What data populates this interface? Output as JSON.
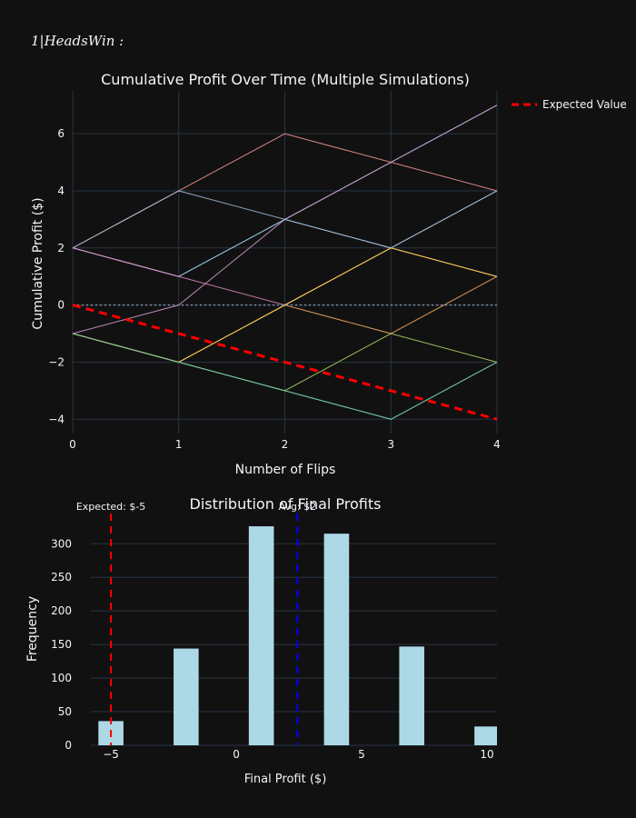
{
  "header": {
    "label": "1|HeadsWin :"
  },
  "theme": {
    "background": "#111111",
    "grid": "#283442",
    "text": "#f2f5fa",
    "expected_line": "#ff0000",
    "avg_line": "#0000ff",
    "bar_fill": "#add8e6"
  },
  "chart_data": [
    {
      "type": "line",
      "title": "Cumulative Profit Over Time (Multiple Simulations)",
      "xlabel": "Number of Flips",
      "ylabel": "Cumulative Profit ($)",
      "xlim": [
        0,
        4
      ],
      "ylim": [
        -4.5,
        7.5
      ],
      "x_ticks": [
        0,
        1,
        2,
        3,
        4
      ],
      "y_ticks": [
        -4,
        -2,
        0,
        2,
        4,
        6
      ],
      "y_tick_labels": [
        "−4",
        "−2",
        "0",
        "2",
        "4",
        "6"
      ],
      "grid": true,
      "legend": {
        "placement": "top-right",
        "entries": [
          "Expected Value"
        ]
      },
      "x": [
        0,
        1,
        2,
        3,
        4
      ],
      "series": [
        {
          "color": "#8dd3c7",
          "values": [
            -1,
            -2,
            -3,
            -4,
            -2
          ]
        },
        {
          "color": "#80b1d3",
          "values": [
            2,
            1,
            3,
            5,
            7
          ]
        },
        {
          "color": "#9ecae1",
          "values": [
            2,
            1,
            3,
            2,
            4
          ]
        },
        {
          "color": "#fdb462",
          "values": [
            -1,
            -2,
            0,
            -1,
            1
          ]
        },
        {
          "color": "#d9a3d9",
          "values": [
            -1,
            0,
            3,
            5,
            7
          ]
        },
        {
          "color": "#bc80bd",
          "values": [
            -1,
            -2,
            0,
            2,
            1
          ]
        },
        {
          "color": "#fb9a99",
          "values": [
            2,
            4,
            6,
            5,
            4
          ]
        },
        {
          "color": "#b3de69",
          "values": [
            -1,
            -2,
            -3,
            -1,
            -2
          ]
        },
        {
          "color": "#a6bddb",
          "values": [
            2,
            4,
            3,
            2,
            4
          ]
        },
        {
          "color": "#e78ac3",
          "values": [
            2,
            1,
            0,
            2,
            1
          ]
        },
        {
          "color": "#ffd92f",
          "values": [
            -1,
            -2,
            0,
            2,
            1
          ]
        },
        {
          "color": "#66c2a5",
          "values": [
            -1,
            -2,
            -3,
            -4,
            -2
          ]
        }
      ],
      "baseline": {
        "y": 0,
        "color": "#7f8c9a",
        "style": "dotted"
      },
      "expected": {
        "name": "Expected Value",
        "x": [
          0,
          4
        ],
        "values": [
          0,
          -4
        ]
      }
    },
    {
      "type": "bar",
      "title": "Distribution of Final Profits",
      "xlabel": "Final Profit ($)",
      "ylabel": "Frequency",
      "xlim": [
        -5.8,
        10.4
      ],
      "ylim": [
        0,
        345
      ],
      "x_ticks": [
        -5,
        0,
        5,
        10
      ],
      "x_tick_labels": [
        "−5",
        "0",
        "5",
        "10"
      ],
      "y_ticks": [
        0,
        50,
        100,
        150,
        200,
        250,
        300
      ],
      "grid": true,
      "bars": [
        {
          "x": -5,
          "value": 36
        },
        {
          "x": -2,
          "value": 144
        },
        {
          "x": 1,
          "value": 326
        },
        {
          "x": 4,
          "value": 315
        },
        {
          "x": 7,
          "value": 147
        },
        {
          "x": 10,
          "value": 28
        }
      ],
      "bar_width": 1,
      "vlines": [
        {
          "x": -5,
          "label": "Expected: $-5",
          "color": "#ff0000"
        },
        {
          "x": 2.44,
          "label": "Avg: $2",
          "color": "#0000ff"
        }
      ]
    }
  ]
}
